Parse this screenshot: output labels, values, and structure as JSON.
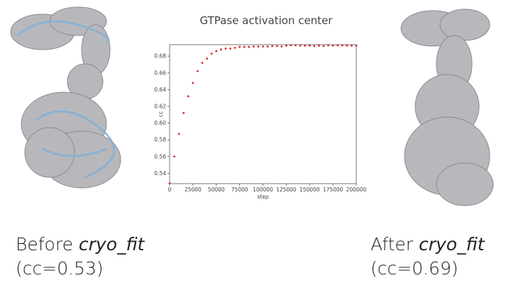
{
  "slide": {
    "left_caption": {
      "prefix": "Before ",
      "tool": "cryo_fit",
      "cc": "(cc=0.53)"
    },
    "right_caption": {
      "prefix": "After ",
      "tool": "cryo_fit",
      "cc": "(cc=0.69)"
    }
  },
  "chart_data": {
    "type": "scatter",
    "title": "GTPase activation center",
    "xlabel": "step",
    "ylabel": "cc",
    "xlim": [
      0,
      200000
    ],
    "ylim": [
      0.5276,
      0.6937
    ],
    "xticks": [
      "0",
      "25000",
      "50000",
      "75000",
      "100000",
      "125000",
      "150000",
      "175000",
      "200000"
    ],
    "yticks": [
      "0.54",
      "0.56",
      "0.58",
      "0.60",
      "0.62",
      "0.64",
      "0.66",
      "0.68"
    ],
    "marker_color": "#d62728",
    "grid": false,
    "x": [
      0,
      5000,
      10000,
      15000,
      20000,
      25000,
      30000,
      35000,
      40000,
      45000,
      50000,
      55000,
      60000,
      65000,
      70000,
      75000,
      80000,
      85000,
      90000,
      95000,
      100000,
      105000,
      110000,
      115000,
      120000,
      125000,
      130000,
      135000,
      140000,
      145000,
      150000,
      155000,
      160000,
      165000,
      170000,
      175000,
      180000,
      185000,
      190000,
      195000,
      200000
    ],
    "y": [
      0.528,
      0.56,
      0.587,
      0.612,
      0.632,
      0.648,
      0.662,
      0.672,
      0.677,
      0.683,
      0.686,
      0.688,
      0.689,
      0.689,
      0.69,
      0.691,
      0.691,
      0.691,
      0.6915,
      0.6915,
      0.6915,
      0.6915,
      0.692,
      0.692,
      0.6915,
      0.6925,
      0.693,
      0.693,
      0.6925,
      0.6925,
      0.6925,
      0.692,
      0.6925,
      0.692,
      0.693,
      0.6925,
      0.693,
      0.693,
      0.6925,
      0.6925,
      0.6925
    ]
  }
}
